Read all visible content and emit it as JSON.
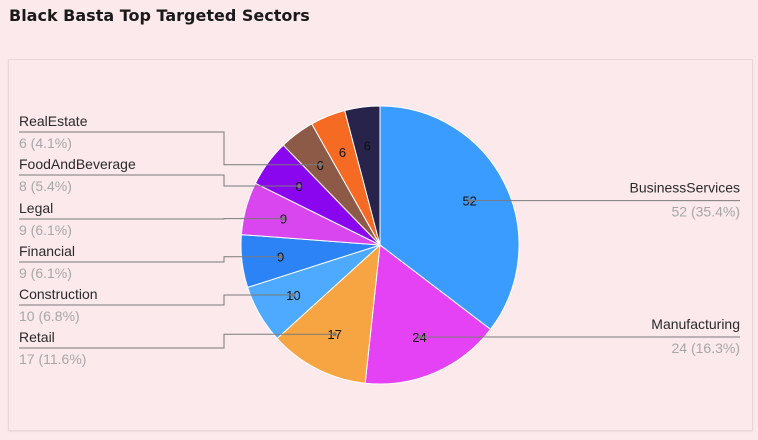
{
  "title": "Black Basta Top Targeted Sectors",
  "chart_data": {
    "type": "pie",
    "title": "Black Basta Top Targeted Sectors",
    "slices": [
      {
        "name": "BusinessServices",
        "value": 52,
        "pct_label": "52 (35.4%)",
        "color": "#3a9cff"
      },
      {
        "name": "Manufacturing",
        "value": 24,
        "pct_label": "24 (16.3%)",
        "color": "#e542f5"
      },
      {
        "name": "Retail",
        "value": 17,
        "pct_label": "17 (11.6%)",
        "color": "#f7a542"
      },
      {
        "name": "Construction",
        "value": 10,
        "pct_label": "10 (6.8%)",
        "color": "#4eaaff"
      },
      {
        "name": "Financial",
        "value": 9,
        "pct_label": "9 (6.1%)",
        "color": "#2b83f6"
      },
      {
        "name": "Legal",
        "value": 9,
        "pct_label": "9 (6.1%)",
        "color": "#d946ef"
      },
      {
        "name": "FoodAndBeverage",
        "value": 8,
        "pct_label": "8 (5.4%)",
        "color": "#8a06ee"
      },
      {
        "name": "RealEstate",
        "value": 6,
        "pct_label": "6 (4.1%)",
        "color": "#8e5a48"
      },
      {
        "name": "",
        "value": 6,
        "pct_label": "",
        "color": "#f56b24"
      },
      {
        "name": "",
        "value": 6,
        "pct_label": "",
        "color": "#27234a"
      }
    ]
  }
}
